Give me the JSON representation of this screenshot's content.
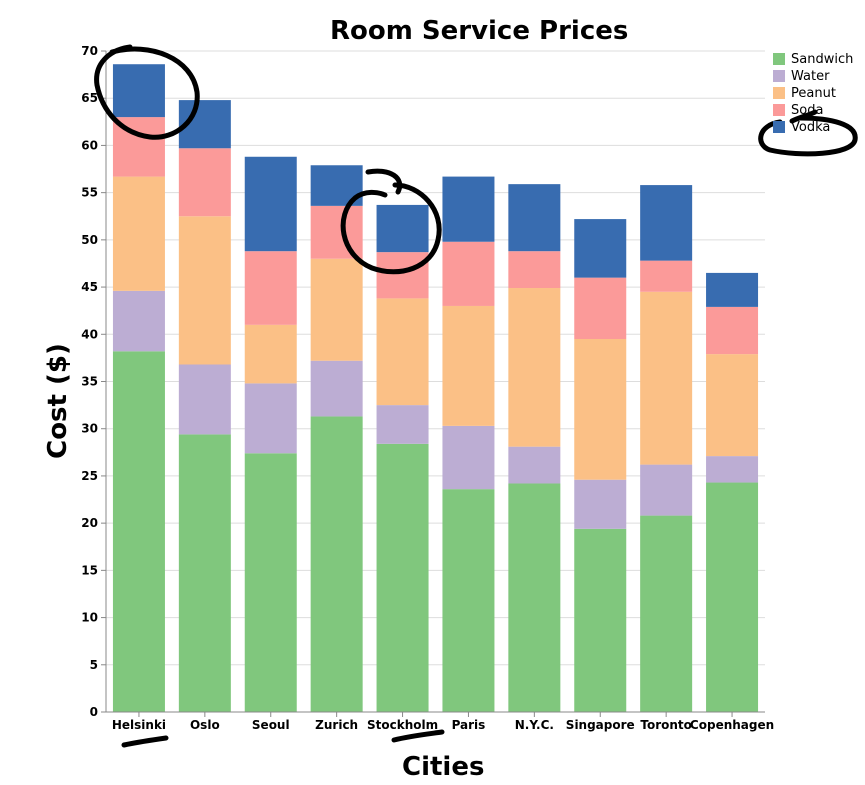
{
  "chart_data": {
    "type": "bar",
    "stacked": true,
    "title": "Room Service Prices",
    "xlabel": "Cities",
    "ylabel": "Cost ($)",
    "ylim": [
      0,
      70
    ],
    "yticks": [
      0,
      5,
      10,
      15,
      20,
      25,
      30,
      35,
      40,
      45,
      50,
      55,
      60,
      65,
      70
    ],
    "grid": "horizontal",
    "legend_position": "top-right",
    "categories": [
      "Helsinki",
      "Oslo",
      "Seoul",
      "Zurich",
      "Stockholm",
      "Paris",
      "N.Y.C.",
      "Singapore",
      "Toronto",
      "Copenhagen"
    ],
    "series": [
      {
        "name": "Sandwich",
        "color": "#80c77d",
        "values": [
          38.2,
          29.4,
          27.4,
          31.3,
          28.4,
          23.6,
          24.2,
          19.4,
          20.8,
          24.3
        ]
      },
      {
        "name": "Water",
        "color": "#bcadd3",
        "values": [
          6.4,
          7.4,
          7.4,
          5.9,
          4.1,
          6.7,
          3.9,
          5.2,
          5.4,
          2.8
        ]
      },
      {
        "name": "Peanut",
        "color": "#fbc086",
        "values": [
          12.1,
          15.7,
          6.2,
          10.8,
          11.3,
          12.7,
          16.8,
          14.9,
          18.3,
          10.8
        ]
      },
      {
        "name": "Soda",
        "color": "#fb9a99",
        "values": [
          6.3,
          7.2,
          7.8,
          5.6,
          4.9,
          6.8,
          3.9,
          6.5,
          3.3,
          5.0
        ]
      },
      {
        "name": "Vodka",
        "color": "#386cb0",
        "values": [
          5.6,
          5.1,
          10.0,
          4.3,
          5.0,
          6.9,
          7.1,
          6.2,
          8.0,
          3.6
        ]
      }
    ]
  }
}
